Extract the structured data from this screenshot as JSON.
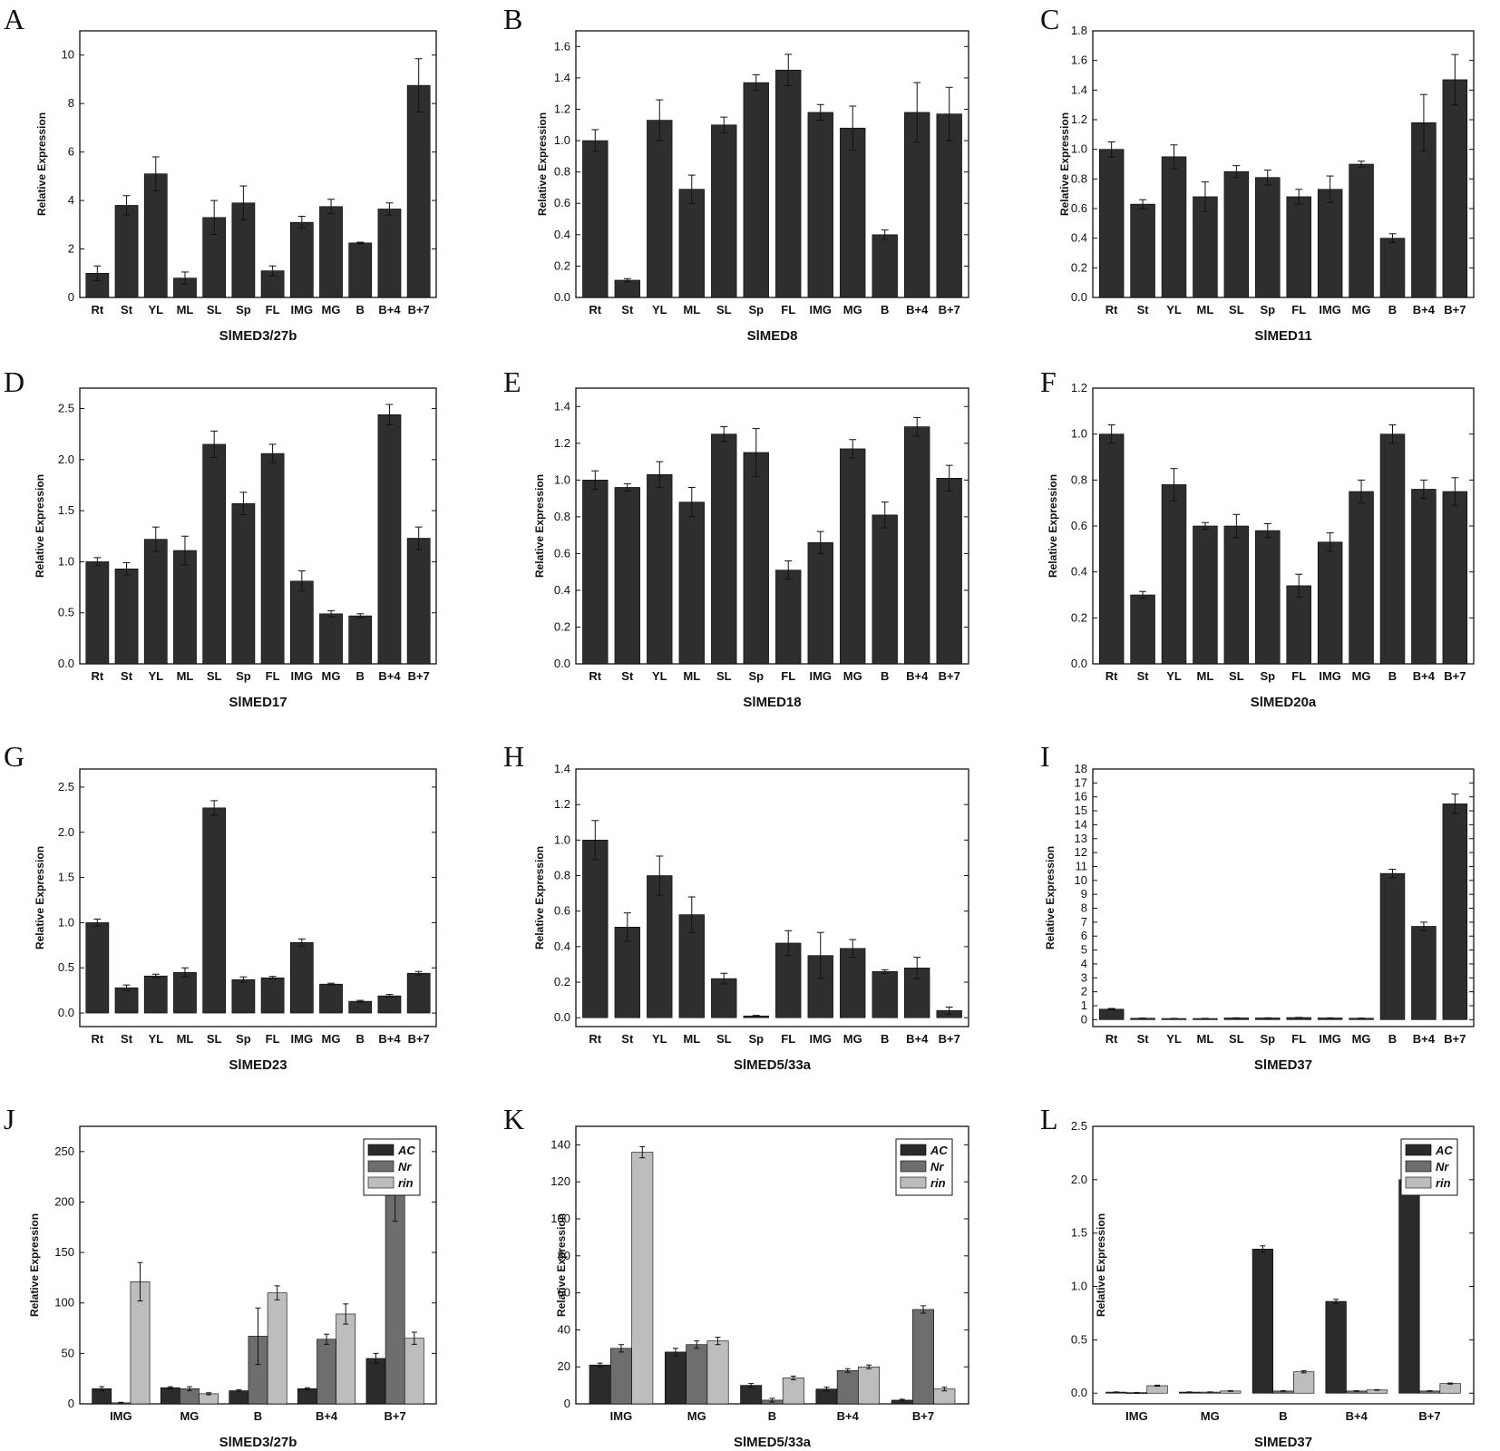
{
  "figure": {
    "colors": {
      "AC": "#2b2b2b",
      "Nr": "#6e6e6e",
      "rin": "#bdbdbd",
      "bar": "#2e2e2e"
    }
  },
  "chart_data": [
    {
      "panel": "A",
      "type": "bar",
      "title": "",
      "xlabel": "SlMED3/27b",
      "ylabel": "Relative Expression",
      "categories": [
        "Rt",
        "St",
        "YL",
        "ML",
        "SL",
        "Sp",
        "FL",
        "IMG",
        "MG",
        "B",
        "B+4",
        "B+7"
      ],
      "values": [
        1.0,
        3.8,
        5.1,
        0.8,
        3.3,
        3.9,
        1.1,
        3.1,
        3.75,
        2.25,
        3.65,
        8.75
      ],
      "errors": [
        0.3,
        0.4,
        0.7,
        0.25,
        0.7,
        0.7,
        0.2,
        0.25,
        0.3,
        0.03,
        0.25,
        1.1
      ],
      "ylim": [
        0,
        11
      ],
      "yticks": [
        0,
        2,
        4,
        6,
        8,
        10
      ],
      "ytick_labels": [
        "0",
        "2",
        "4",
        "6",
        "8",
        "10"
      ]
    },
    {
      "panel": "B",
      "type": "bar",
      "title": "",
      "xlabel": "SlMED8",
      "ylabel": "Relative Expression",
      "categories": [
        "Rt",
        "St",
        "YL",
        "ML",
        "SL",
        "Sp",
        "FL",
        "IMG",
        "MG",
        "B",
        "B+4",
        "B+7"
      ],
      "values": [
        1.0,
        0.11,
        1.13,
        0.69,
        1.1,
        1.37,
        1.45,
        1.18,
        1.08,
        0.4,
        1.18,
        1.17
      ],
      "errors": [
        0.07,
        0.01,
        0.13,
        0.09,
        0.05,
        0.05,
        0.1,
        0.05,
        0.14,
        0.03,
        0.19,
        0.17
      ],
      "ylim": [
        0,
        1.7
      ],
      "yticks": [
        0,
        0.2,
        0.4,
        0.6,
        0.8,
        1.0,
        1.2,
        1.4,
        1.6
      ],
      "ytick_labels": [
        "0.0",
        "0.2",
        "0.4",
        "0.6",
        "0.8",
        "1.0",
        "1.2",
        "1.4",
        "1.6"
      ]
    },
    {
      "panel": "C",
      "type": "bar",
      "title": "",
      "xlabel": "SlMED11",
      "ylabel": "Relative Expression",
      "categories": [
        "Rt",
        "St",
        "YL",
        "ML",
        "SL",
        "Sp",
        "FL",
        "IMG",
        "MG",
        "B",
        "B+4",
        "B+7"
      ],
      "values": [
        1.0,
        0.63,
        0.95,
        0.68,
        0.85,
        0.81,
        0.68,
        0.73,
        0.9,
        0.4,
        1.18,
        1.47
      ],
      "errors": [
        0.05,
        0.03,
        0.08,
        0.1,
        0.04,
        0.05,
        0.05,
        0.09,
        0.02,
        0.03,
        0.19,
        0.17
      ],
      "ylim": [
        0,
        1.8
      ],
      "yticks": [
        0,
        0.2,
        0.4,
        0.6,
        0.8,
        1.0,
        1.2,
        1.4,
        1.6,
        1.8
      ],
      "ytick_labels": [
        "0.0",
        "0.2",
        "0.4",
        "0.6",
        "0.8",
        "1.0",
        "1.2",
        "1.4",
        "1.6",
        "1.8"
      ]
    },
    {
      "panel": "D",
      "type": "bar",
      "title": "",
      "xlabel": "SlMED17",
      "ylabel": "Relative Expression",
      "categories": [
        "Rt",
        "St",
        "YL",
        "ML",
        "SL",
        "Sp",
        "FL",
        "IMG",
        "MG",
        "B",
        "B+4",
        "B+7"
      ],
      "values": [
        1.0,
        0.93,
        1.22,
        1.11,
        2.15,
        1.57,
        2.06,
        0.81,
        0.49,
        0.47,
        2.44,
        1.23
      ],
      "errors": [
        0.04,
        0.06,
        0.12,
        0.14,
        0.13,
        0.11,
        0.09,
        0.1,
        0.03,
        0.02,
        0.1,
        0.11
      ],
      "ylim": [
        0,
        2.7
      ],
      "yticks": [
        0,
        0.5,
        1.0,
        1.5,
        2.0,
        2.5
      ],
      "ytick_labels": [
        "0.0",
        "0.5",
        "1.0",
        "1.5",
        "2.0",
        "2.5"
      ]
    },
    {
      "panel": "E",
      "type": "bar",
      "title": "",
      "xlabel": "SlMED18",
      "ylabel": "Relative Expression",
      "categories": [
        "Rt",
        "St",
        "YL",
        "ML",
        "SL",
        "Sp",
        "FL",
        "IMG",
        "MG",
        "B",
        "B+4",
        "B+7"
      ],
      "values": [
        1.0,
        0.96,
        1.03,
        0.88,
        1.25,
        1.15,
        0.51,
        0.66,
        1.17,
        0.81,
        1.29,
        1.01
      ],
      "errors": [
        0.05,
        0.02,
        0.07,
        0.08,
        0.04,
        0.13,
        0.05,
        0.06,
        0.05,
        0.07,
        0.05,
        0.07
      ],
      "ylim": [
        0,
        1.5
      ],
      "yticks": [
        0,
        0.2,
        0.4,
        0.6,
        0.8,
        1.0,
        1.2,
        1.4
      ],
      "ytick_labels": [
        "0.0",
        "0.2",
        "0.4",
        "0.6",
        "0.8",
        "1.0",
        "1.2",
        "1.4"
      ]
    },
    {
      "panel": "F",
      "type": "bar",
      "title": "",
      "xlabel": "SlMED20a",
      "ylabel": "Relative Expression",
      "categories": [
        "Rt",
        "St",
        "YL",
        "ML",
        "SL",
        "Sp",
        "FL",
        "IMG",
        "MG",
        "B",
        "B+4",
        "B+7"
      ],
      "values": [
        1.0,
        0.3,
        0.78,
        0.6,
        0.6,
        0.58,
        0.34,
        0.53,
        0.75,
        1.0,
        0.76,
        0.75
      ],
      "errors": [
        0.04,
        0.015,
        0.07,
        0.015,
        0.05,
        0.03,
        0.05,
        0.04,
        0.05,
        0.04,
        0.04,
        0.06
      ],
      "ylim": [
        0,
        1.2
      ],
      "yticks": [
        0,
        0.2,
        0.4,
        0.6,
        0.8,
        1.0,
        1.2
      ],
      "ytick_labels": [
        "0.0",
        "0.2",
        "0.4",
        "0.6",
        "0.8",
        "1.0",
        "1.2"
      ]
    },
    {
      "panel": "G",
      "type": "bar",
      "title": "",
      "xlabel": "SlMED23",
      "ylabel": "Relative Expression",
      "categories": [
        "Rt",
        "St",
        "YL",
        "ML",
        "SL",
        "Sp",
        "FL",
        "IMG",
        "MG",
        "B",
        "B+4",
        "B+7"
      ],
      "values": [
        1.0,
        0.28,
        0.41,
        0.45,
        2.27,
        0.37,
        0.39,
        0.78,
        0.32,
        0.13,
        0.19,
        0.44
      ],
      "errors": [
        0.04,
        0.03,
        0.02,
        0.05,
        0.08,
        0.03,
        0.015,
        0.04,
        0.01,
        0.01,
        0.015,
        0.02
      ],
      "ylim": [
        -0.15,
        2.7
      ],
      "yticks": [
        0,
        0.5,
        1.0,
        1.5,
        2.0,
        2.5
      ],
      "ytick_labels": [
        "0.0",
        "0.5",
        "1.0",
        "1.5",
        "2.0",
        "2.5"
      ]
    },
    {
      "panel": "H",
      "type": "bar",
      "title": "",
      "xlabel": "SlMED5/33a",
      "ylabel": "Relative Expression",
      "categories": [
        "Rt",
        "St",
        "YL",
        "ML",
        "SL",
        "Sp",
        "FL",
        "IMG",
        "MG",
        "B",
        "B+4",
        "B+7"
      ],
      "values": [
        1.0,
        0.51,
        0.8,
        0.58,
        0.22,
        0.01,
        0.42,
        0.35,
        0.39,
        0.26,
        0.28,
        0.04
      ],
      "errors": [
        0.11,
        0.08,
        0.11,
        0.1,
        0.03,
        0.003,
        0.07,
        0.13,
        0.05,
        0.01,
        0.06,
        0.02
      ],
      "ylim": [
        -0.05,
        1.4
      ],
      "yticks": [
        0,
        0.2,
        0.4,
        0.6,
        0.8,
        1.0,
        1.2,
        1.4
      ],
      "ytick_labels": [
        "0.0",
        "0.2",
        "0.4",
        "0.6",
        "0.8",
        "1.0",
        "1.2",
        "1.4"
      ]
    },
    {
      "panel": "I",
      "type": "bar",
      "title": "",
      "xlabel": "SlMED37",
      "ylabel": "Relative Expression",
      "categories": [
        "Rt",
        "St",
        "YL",
        "ML",
        "SL",
        "Sp",
        "FL",
        "IMG",
        "MG",
        "B",
        "B+4",
        "B+7"
      ],
      "values": [
        0.75,
        0.1,
        0.08,
        0.08,
        0.12,
        0.12,
        0.15,
        0.12,
        0.1,
        10.5,
        6.7,
        15.5
      ],
      "errors": [
        0.05,
        0.01,
        0.01,
        0.01,
        0.01,
        0.01,
        0.01,
        0.01,
        0.01,
        0.3,
        0.3,
        0.7
      ],
      "ylim": [
        -0.5,
        18
      ],
      "yticks": [
        0,
        1,
        2,
        3,
        4,
        5,
        6,
        7,
        8,
        9,
        10,
        11,
        12,
        13,
        14,
        15,
        16,
        17,
        18
      ],
      "ytick_labels": [
        "0",
        "1",
        "2",
        "3",
        "4",
        "5",
        "6",
        "7",
        "8",
        "9",
        "10",
        "11",
        "12",
        "13",
        "14",
        "15",
        "16",
        "17",
        "18"
      ]
    },
    {
      "panel": "J",
      "type": "bar",
      "title": "",
      "xlabel": "SlMED3/27b",
      "ylabel": "Relative Expression",
      "categories": [
        "IMG",
        "MG",
        "B",
        "B+4",
        "B+7"
      ],
      "series": [
        {
          "name": "AC",
          "values": [
            15,
            16,
            13,
            15,
            45
          ],
          "errors": [
            2,
            1,
            1,
            1,
            5
          ]
        },
        {
          "name": "Nr",
          "values": [
            1,
            15,
            67,
            64,
            213
          ],
          "errors": [
            0.5,
            2,
            28,
            5,
            32
          ]
        },
        {
          "name": "rin",
          "values": [
            121,
            10,
            110,
            89,
            65
          ],
          "errors": [
            19,
            1,
            7,
            10,
            6
          ]
        }
      ],
      "legend": "top-right",
      "ylim": [
        0,
        275
      ],
      "yticks": [
        0,
        50,
        100,
        150,
        200,
        250
      ],
      "ytick_labels": [
        "0",
        "50",
        "100",
        "150",
        "200",
        "250"
      ]
    },
    {
      "panel": "K",
      "type": "bar",
      "title": "",
      "xlabel": "SlMED5/33a",
      "ylabel": "Relative Expression",
      "categories": [
        "IMG",
        "MG",
        "B",
        "B+4",
        "B+7"
      ],
      "series": [
        {
          "name": "AC",
          "values": [
            21,
            28,
            10,
            8,
            2
          ],
          "errors": [
            1,
            2,
            1,
            1,
            0.5
          ]
        },
        {
          "name": "Nr",
          "values": [
            30,
            32,
            2,
            18,
            51
          ],
          "errors": [
            2,
            2,
            1,
            1,
            2
          ]
        },
        {
          "name": "rin",
          "values": [
            136,
            34,
            14,
            20,
            8
          ],
          "errors": [
            3,
            2,
            1,
            1,
            1
          ]
        }
      ],
      "legend": "top-right",
      "ylim": [
        0,
        150
      ],
      "yticks": [
        0,
        20,
        40,
        60,
        80,
        100,
        120,
        140
      ],
      "ytick_labels": [
        "0",
        "20",
        "40",
        "60",
        "80",
        "100",
        "120",
        "140"
      ]
    },
    {
      "panel": "L",
      "type": "bar",
      "title": "",
      "xlabel": "SlMED37",
      "ylabel": "Relative Expression",
      "categories": [
        "IMG",
        "MG",
        "B",
        "B+4",
        "B+7"
      ],
      "series": [
        {
          "name": "AC",
          "values": [
            0.01,
            0.01,
            1.35,
            0.86,
            2.0
          ],
          "errors": [
            0.002,
            0.002,
            0.03,
            0.02,
            0.09
          ]
        },
        {
          "name": "Nr",
          "values": [
            0.005,
            0.01,
            0.02,
            0.02,
            0.02
          ],
          "errors": [
            0.002,
            0.002,
            0.003,
            0.003,
            0.003
          ]
        },
        {
          "name": "rin",
          "values": [
            0.07,
            0.02,
            0.2,
            0.03,
            0.09
          ],
          "errors": [
            0.005,
            0.003,
            0.01,
            0.003,
            0.005
          ]
        }
      ],
      "legend": "top-right",
      "ylim": [
        -0.1,
        2.5
      ],
      "yticks": [
        0,
        0.5,
        1.0,
        1.5,
        2.0,
        2.5
      ],
      "ytick_labels": [
        "0.0",
        "0.5",
        "1.0",
        "1.5",
        "2.0",
        "2.5"
      ]
    }
  ]
}
